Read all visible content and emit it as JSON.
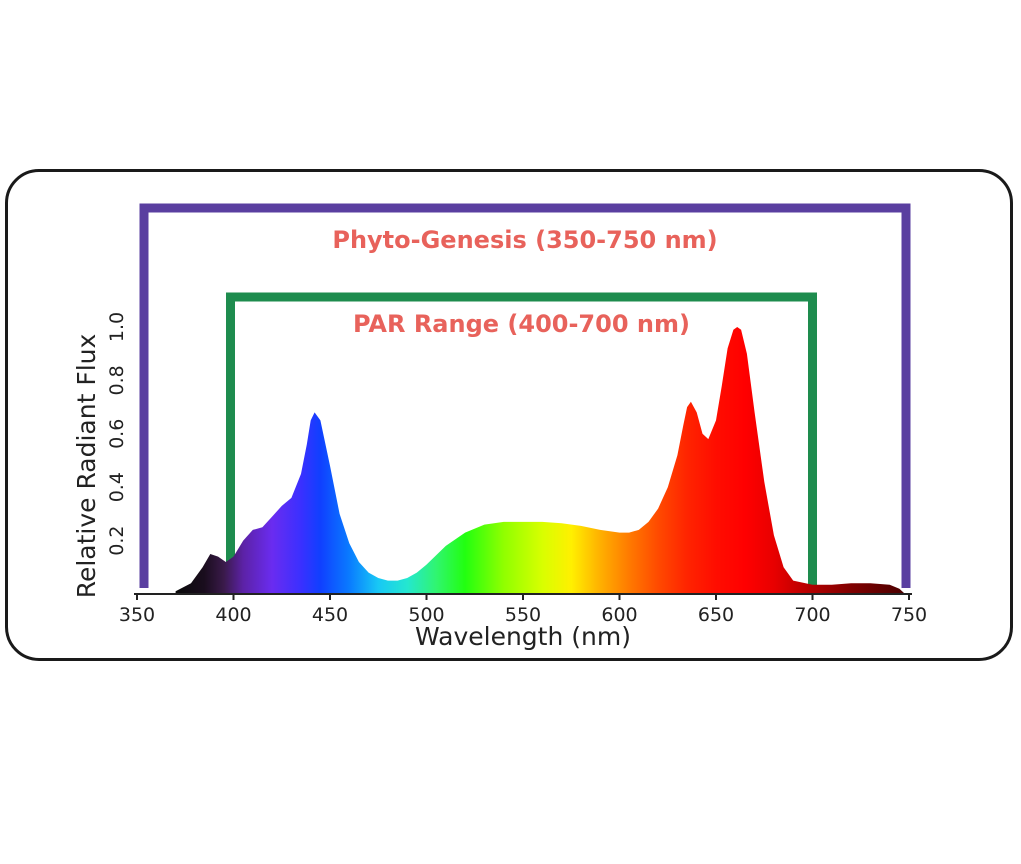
{
  "chart_data": {
    "type": "area",
    "xlabel": "Wavelength (nm)",
    "ylabel": "Relative Radiant Flux",
    "xlim": [
      350,
      750
    ],
    "ylim": [
      0,
      1.0
    ],
    "x_ticks": [
      350,
      400,
      450,
      500,
      550,
      600,
      650,
      700,
      750
    ],
    "x_tick_labels": [
      "350",
      "400",
      "450",
      "500",
      "550",
      "600",
      "650",
      "700",
      "750"
    ],
    "y_ticks": [
      0.2,
      0.4,
      0.6,
      0.8,
      1.0
    ],
    "y_tick_labels": [
      "0.2",
      "0.4",
      "0.6",
      "0.8",
      "1.0"
    ],
    "grid": false,
    "fill": "visible-spectrum gradient by wavelength",
    "x": [
      370,
      378,
      384,
      388,
      392,
      396,
      400,
      405,
      410,
      415,
      420,
      425,
      430,
      435,
      438,
      440,
      442,
      445,
      450,
      455,
      460,
      465,
      470,
      475,
      480,
      485,
      490,
      495,
      500,
      510,
      520,
      530,
      540,
      550,
      560,
      570,
      580,
      590,
      600,
      605,
      610,
      615,
      620,
      625,
      630,
      633,
      635,
      637,
      640,
      643,
      646,
      650,
      653,
      656,
      659,
      661,
      663,
      666,
      670,
      675,
      680,
      685,
      690,
      700,
      710,
      720,
      730,
      740,
      745,
      748
    ],
    "y": [
      0.01,
      0.04,
      0.1,
      0.15,
      0.14,
      0.12,
      0.14,
      0.2,
      0.24,
      0.25,
      0.29,
      0.33,
      0.36,
      0.45,
      0.56,
      0.65,
      0.68,
      0.65,
      0.48,
      0.3,
      0.19,
      0.12,
      0.08,
      0.06,
      0.05,
      0.05,
      0.06,
      0.08,
      0.11,
      0.18,
      0.23,
      0.26,
      0.27,
      0.27,
      0.27,
      0.265,
      0.255,
      0.24,
      0.23,
      0.23,
      0.24,
      0.27,
      0.32,
      0.4,
      0.52,
      0.63,
      0.7,
      0.72,
      0.68,
      0.6,
      0.58,
      0.65,
      0.78,
      0.92,
      0.99,
      1.0,
      0.99,
      0.9,
      0.68,
      0.42,
      0.22,
      0.1,
      0.05,
      0.035,
      0.035,
      0.04,
      0.04,
      0.035,
      0.02,
      0.0
    ],
    "ranges": [
      {
        "label": "Phyto-Genesis (350-750 nm)",
        "start": 350,
        "end": 750,
        "color": "#5a3fa0"
      },
      {
        "label": "PAR Range (400-700 nm)",
        "start": 400,
        "end": 700,
        "color": "#1e8c4e"
      }
    ]
  }
}
